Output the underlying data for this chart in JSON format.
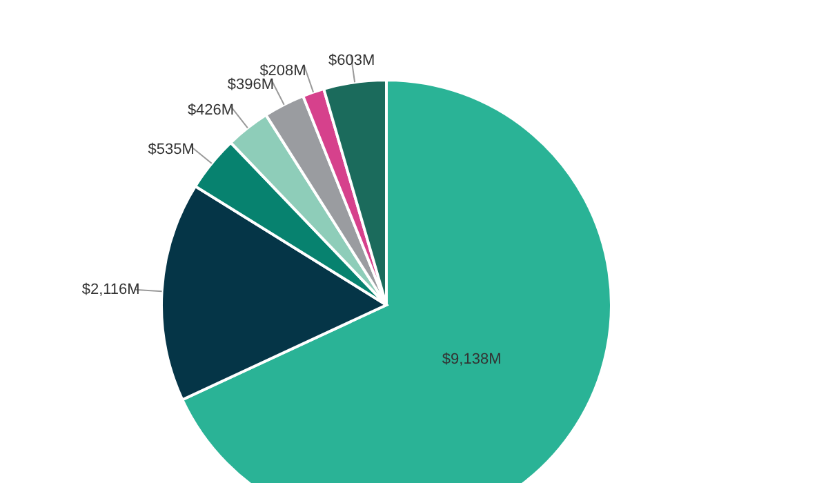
{
  "chart_data": {
    "type": "pie",
    "categories": [
      null,
      null,
      null,
      null,
      null,
      null,
      null
    ],
    "values": [
      9138,
      2116,
      535,
      426,
      396,
      208,
      603
    ],
    "colors": [
      "#2ab396",
      "#053547",
      "#07826f",
      "#8ecdb9",
      "#9a9ca0",
      "#d6418c",
      "#1b6b5c"
    ],
    "value_labels": [
      "$9,138M",
      "$2,116M",
      "$535M",
      "$426M",
      "$396M",
      "$208M",
      "$603M"
    ],
    "legend": false
  }
}
